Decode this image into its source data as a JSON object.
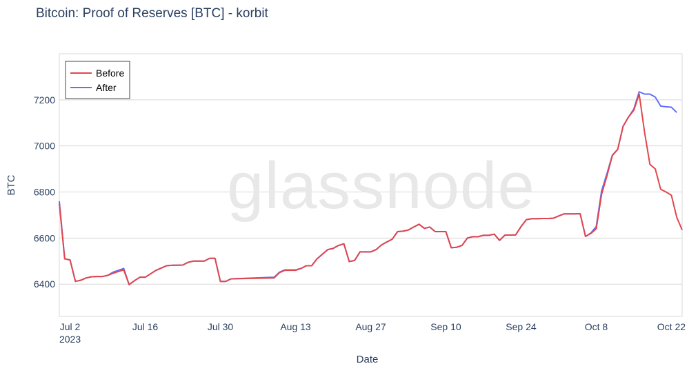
{
  "chart_data": {
    "type": "line",
    "title": "Bitcoin: Proof of Reserves [BTC] - korbit",
    "xlabel": "Date",
    "ylabel": "BTC",
    "watermark": "glassnode",
    "xlim": [
      "2023-06-30",
      "2023-10-24"
    ],
    "ylim": [
      6260,
      7400
    ],
    "x_ticks": [
      {
        "date": "2023-07-02",
        "label": "Jul 2",
        "sub": "2023"
      },
      {
        "date": "2023-07-16",
        "label": "Jul 16"
      },
      {
        "date": "2023-07-30",
        "label": "Jul 30"
      },
      {
        "date": "2023-08-13",
        "label": "Aug 13"
      },
      {
        "date": "2023-08-27",
        "label": "Aug 27"
      },
      {
        "date": "2023-09-10",
        "label": "Sep 10"
      },
      {
        "date": "2023-09-24",
        "label": "Sep 24"
      },
      {
        "date": "2023-10-08",
        "label": "Oct 8"
      },
      {
        "date": "2023-10-22",
        "label": "Oct 22"
      }
    ],
    "y_ticks": [
      6400,
      6600,
      6800,
      7000,
      7200
    ],
    "legend": {
      "placement": "top-left"
    },
    "grid": true,
    "series": [
      {
        "name": "Before",
        "color": "#e0474c",
        "points": [
          [
            "2023-06-30",
            6750
          ],
          [
            "2023-07-01",
            6510
          ],
          [
            "2023-07-02",
            6505
          ],
          [
            "2023-07-03",
            6412
          ],
          [
            "2023-07-04",
            6417
          ],
          [
            "2023-07-05",
            6427
          ],
          [
            "2023-07-06",
            6432
          ],
          [
            "2023-07-07",
            6433
          ],
          [
            "2023-07-08",
            6433
          ],
          [
            "2023-07-09",
            6438
          ],
          [
            "2023-07-10",
            6447
          ],
          [
            "2023-07-11",
            6455
          ],
          [
            "2023-07-12",
            6462
          ],
          [
            "2023-07-13",
            6398
          ],
          [
            "2023-07-14",
            6415
          ],
          [
            "2023-07-15",
            6430
          ],
          [
            "2023-07-16",
            6430
          ],
          [
            "2023-07-17",
            6445
          ],
          [
            "2023-07-18",
            6460
          ],
          [
            "2023-07-19",
            6470
          ],
          [
            "2023-07-20",
            6480
          ],
          [
            "2023-07-21",
            6482
          ],
          [
            "2023-07-22",
            6482
          ],
          [
            "2023-07-23",
            6483
          ],
          [
            "2023-07-24",
            6495
          ],
          [
            "2023-07-25",
            6500
          ],
          [
            "2023-07-26",
            6500
          ],
          [
            "2023-07-27",
            6500
          ],
          [
            "2023-07-28",
            6512
          ],
          [
            "2023-07-29",
            6512
          ],
          [
            "2023-07-30",
            6412
          ],
          [
            "2023-07-31",
            6412
          ],
          [
            "2023-08-01",
            6423
          ],
          [
            "2023-08-09",
            6427
          ],
          [
            "2023-08-10",
            6450
          ],
          [
            "2023-08-11",
            6460
          ],
          [
            "2023-08-12",
            6460
          ],
          [
            "2023-08-13",
            6460
          ],
          [
            "2023-08-14",
            6468
          ],
          [
            "2023-08-15",
            6480
          ],
          [
            "2023-08-16",
            6480
          ],
          [
            "2023-08-17",
            6510
          ],
          [
            "2023-08-18",
            6530
          ],
          [
            "2023-08-19",
            6550
          ],
          [
            "2023-08-20",
            6555
          ],
          [
            "2023-08-21",
            6568
          ],
          [
            "2023-08-22",
            6575
          ],
          [
            "2023-08-23",
            6498
          ],
          [
            "2023-08-24",
            6503
          ],
          [
            "2023-08-25",
            6540
          ],
          [
            "2023-08-26",
            6540
          ],
          [
            "2023-08-27",
            6540
          ],
          [
            "2023-08-28",
            6550
          ],
          [
            "2023-08-29",
            6570
          ],
          [
            "2023-08-30",
            6583
          ],
          [
            "2023-08-31",
            6595
          ],
          [
            "2023-09-01",
            6628
          ],
          [
            "2023-09-02",
            6630
          ],
          [
            "2023-09-03",
            6635
          ],
          [
            "2023-09-04",
            6648
          ],
          [
            "2023-09-05",
            6660
          ],
          [
            "2023-09-06",
            6642
          ],
          [
            "2023-09-07",
            6648
          ],
          [
            "2023-09-08",
            6628
          ],
          [
            "2023-09-09",
            6628
          ],
          [
            "2023-09-10",
            6628
          ],
          [
            "2023-09-11",
            6558
          ],
          [
            "2023-09-12",
            6560
          ],
          [
            "2023-09-13",
            6568
          ],
          [
            "2023-09-14",
            6600
          ],
          [
            "2023-09-15",
            6606
          ],
          [
            "2023-09-16",
            6606
          ],
          [
            "2023-09-17",
            6612
          ],
          [
            "2023-09-18",
            6612
          ],
          [
            "2023-09-19",
            6617
          ],
          [
            "2023-09-20",
            6590
          ],
          [
            "2023-09-21",
            6613
          ],
          [
            "2023-09-22",
            6613
          ],
          [
            "2023-09-23",
            6614
          ],
          [
            "2023-09-24",
            6650
          ],
          [
            "2023-09-25",
            6680
          ],
          [
            "2023-09-26",
            6684
          ],
          [
            "2023-09-27",
            6684
          ],
          [
            "2023-09-28",
            6685
          ],
          [
            "2023-09-29",
            6685
          ],
          [
            "2023-09-30",
            6686
          ],
          [
            "2023-10-01",
            6696
          ],
          [
            "2023-10-02",
            6705
          ],
          [
            "2023-10-03",
            6705
          ],
          [
            "2023-10-04",
            6705
          ],
          [
            "2023-10-05",
            6706
          ],
          [
            "2023-10-06",
            6607
          ],
          [
            "2023-10-07",
            6620
          ],
          [
            "2023-10-08",
            6640
          ],
          [
            "2023-10-09",
            6790
          ],
          [
            "2023-10-10",
            6870
          ],
          [
            "2023-10-11",
            6958
          ],
          [
            "2023-10-12",
            6985
          ],
          [
            "2023-10-13",
            7085
          ],
          [
            "2023-10-14",
            7125
          ],
          [
            "2023-10-15",
            7155
          ],
          [
            "2023-10-16",
            7225
          ],
          [
            "2023-10-17",
            7060
          ],
          [
            "2023-10-18",
            6920
          ],
          [
            "2023-10-19",
            6900
          ],
          [
            "2023-10-20",
            6812
          ],
          [
            "2023-10-21",
            6800
          ],
          [
            "2023-10-22",
            6786
          ],
          [
            "2023-10-23",
            6690
          ],
          [
            "2023-10-24",
            6635
          ]
        ]
      },
      {
        "name": "After",
        "color": "#636efa",
        "points": [
          [
            "2023-06-30",
            6760
          ],
          [
            "2023-07-01",
            6510
          ],
          [
            "2023-07-02",
            6505
          ],
          [
            "2023-07-03",
            6412
          ],
          [
            "2023-07-04",
            6417
          ],
          [
            "2023-07-05",
            6427
          ],
          [
            "2023-07-06",
            6432
          ],
          [
            "2023-07-07",
            6433
          ],
          [
            "2023-07-08",
            6433
          ],
          [
            "2023-07-09",
            6438
          ],
          [
            "2023-07-10",
            6452
          ],
          [
            "2023-07-11",
            6460
          ],
          [
            "2023-07-12",
            6468
          ],
          [
            "2023-07-13",
            6398
          ],
          [
            "2023-07-14",
            6415
          ],
          [
            "2023-07-15",
            6430
          ],
          [
            "2023-07-16",
            6430
          ],
          [
            "2023-07-17",
            6445
          ],
          [
            "2023-07-18",
            6460
          ],
          [
            "2023-07-19",
            6470
          ],
          [
            "2023-07-20",
            6480
          ],
          [
            "2023-07-21",
            6482
          ],
          [
            "2023-07-22",
            6482
          ],
          [
            "2023-07-23",
            6483
          ],
          [
            "2023-07-24",
            6495
          ],
          [
            "2023-07-25",
            6500
          ],
          [
            "2023-07-26",
            6500
          ],
          [
            "2023-07-27",
            6500
          ],
          [
            "2023-07-28",
            6512
          ],
          [
            "2023-07-29",
            6512
          ],
          [
            "2023-07-30",
            6412
          ],
          [
            "2023-07-31",
            6412
          ],
          [
            "2023-08-01",
            6423
          ],
          [
            "2023-08-09",
            6430
          ],
          [
            "2023-08-10",
            6452
          ],
          [
            "2023-08-11",
            6462
          ],
          [
            "2023-08-12",
            6462
          ],
          [
            "2023-08-13",
            6462
          ],
          [
            "2023-08-14",
            6468
          ],
          [
            "2023-08-15",
            6480
          ],
          [
            "2023-08-16",
            6480
          ],
          [
            "2023-08-17",
            6510
          ],
          [
            "2023-08-18",
            6530
          ],
          [
            "2023-08-19",
            6550
          ],
          [
            "2023-08-20",
            6555
          ],
          [
            "2023-08-21",
            6568
          ],
          [
            "2023-08-22",
            6575
          ],
          [
            "2023-08-23",
            6498
          ],
          [
            "2023-08-24",
            6503
          ],
          [
            "2023-08-25",
            6540
          ],
          [
            "2023-08-26",
            6540
          ],
          [
            "2023-08-27",
            6540
          ],
          [
            "2023-08-28",
            6550
          ],
          [
            "2023-08-29",
            6570
          ],
          [
            "2023-08-30",
            6583
          ],
          [
            "2023-08-31",
            6595
          ],
          [
            "2023-09-01",
            6628
          ],
          [
            "2023-09-02",
            6630
          ],
          [
            "2023-09-03",
            6635
          ],
          [
            "2023-09-04",
            6648
          ],
          [
            "2023-09-05",
            6660
          ],
          [
            "2023-09-06",
            6642
          ],
          [
            "2023-09-07",
            6648
          ],
          [
            "2023-09-08",
            6628
          ],
          [
            "2023-09-09",
            6628
          ],
          [
            "2023-09-10",
            6628
          ],
          [
            "2023-09-11",
            6558
          ],
          [
            "2023-09-12",
            6560
          ],
          [
            "2023-09-13",
            6568
          ],
          [
            "2023-09-14",
            6600
          ],
          [
            "2023-09-15",
            6606
          ],
          [
            "2023-09-16",
            6606
          ],
          [
            "2023-09-17",
            6612
          ],
          [
            "2023-09-18",
            6612
          ],
          [
            "2023-09-19",
            6617
          ],
          [
            "2023-09-20",
            6590
          ],
          [
            "2023-09-21",
            6613
          ],
          [
            "2023-09-22",
            6613
          ],
          [
            "2023-09-23",
            6614
          ],
          [
            "2023-09-24",
            6650
          ],
          [
            "2023-09-25",
            6680
          ],
          [
            "2023-09-26",
            6684
          ],
          [
            "2023-09-27",
            6684
          ],
          [
            "2023-09-28",
            6685
          ],
          [
            "2023-09-29",
            6685
          ],
          [
            "2023-09-30",
            6686
          ],
          [
            "2023-10-01",
            6696
          ],
          [
            "2023-10-02",
            6705
          ],
          [
            "2023-10-03",
            6705
          ],
          [
            "2023-10-04",
            6705
          ],
          [
            "2023-10-05",
            6706
          ],
          [
            "2023-10-06",
            6607
          ],
          [
            "2023-10-07",
            6622
          ],
          [
            "2023-10-08",
            6650
          ],
          [
            "2023-10-09",
            6805
          ],
          [
            "2023-10-10",
            6880
          ],
          [
            "2023-10-11",
            6960
          ],
          [
            "2023-10-12",
            6985
          ],
          [
            "2023-10-13",
            7085
          ],
          [
            "2023-10-14",
            7125
          ],
          [
            "2023-10-15",
            7160
          ],
          [
            "2023-10-16",
            7235
          ],
          [
            "2023-10-17",
            7225
          ],
          [
            "2023-10-18",
            7225
          ],
          [
            "2023-10-19",
            7212
          ],
          [
            "2023-10-20",
            7173
          ],
          [
            "2023-10-21",
            7170
          ],
          [
            "2023-10-22",
            7168
          ],
          [
            "2023-10-23",
            7145
          ]
        ]
      }
    ]
  }
}
